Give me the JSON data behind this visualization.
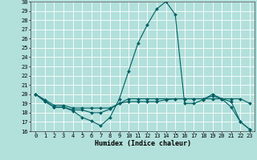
{
  "xlabel": "Humidex (Indice chaleur)",
  "xlim": [
    -0.5,
    23.5
  ],
  "ylim": [
    16,
    30
  ],
  "yticks": [
    16,
    17,
    18,
    19,
    20,
    21,
    22,
    23,
    24,
    25,
    26,
    27,
    28,
    29,
    30
  ],
  "xticks": [
    0,
    1,
    2,
    3,
    4,
    5,
    6,
    7,
    8,
    9,
    10,
    11,
    12,
    13,
    14,
    15,
    16,
    17,
    18,
    19,
    20,
    21,
    22,
    23
  ],
  "bg_color": "#b2e0db",
  "line_color": "#006064",
  "grid_color": "#ffffff",
  "line1_x": [
    0,
    1,
    2,
    3,
    4,
    5,
    6,
    7,
    8,
    9,
    10,
    11,
    12,
    13,
    14,
    15,
    16,
    17,
    18,
    19,
    20,
    21,
    22,
    23
  ],
  "line1_y": [
    20,
    19.2,
    18.6,
    18.6,
    18.2,
    17.5,
    17.1,
    16.6,
    17.5,
    19.5,
    22.5,
    25.5,
    27.5,
    29.2,
    30.0,
    28.6,
    19.0,
    19.0,
    19.4,
    20.0,
    19.5,
    18.6,
    17.0,
    16.2
  ],
  "line2_x": [
    0,
    1,
    2,
    3,
    4,
    5,
    6,
    7,
    8,
    9,
    10,
    11,
    12,
    13,
    14,
    15,
    16,
    17,
    18,
    19,
    20,
    21,
    22,
    23
  ],
  "line2_y": [
    20,
    19.3,
    18.6,
    18.6,
    18.3,
    18.3,
    18.0,
    18.0,
    18.4,
    19.0,
    19.2,
    19.2,
    19.2,
    19.2,
    19.4,
    19.5,
    19.5,
    19.5,
    19.5,
    19.5,
    19.5,
    19.2,
    17.0,
    16.2
  ],
  "line3_x": [
    0,
    1,
    2,
    3,
    4,
    5,
    6,
    7,
    8,
    9,
    10,
    11,
    12,
    13,
    14,
    15,
    16,
    17,
    18,
    19,
    20,
    21,
    22,
    23
  ],
  "line3_y": [
    20,
    19.4,
    18.8,
    18.8,
    18.5,
    18.5,
    18.5,
    18.5,
    18.5,
    19.0,
    19.5,
    19.5,
    19.5,
    19.5,
    19.5,
    19.5,
    19.5,
    19.5,
    19.5,
    19.8,
    19.5,
    19.5,
    19.5,
    19.0
  ]
}
